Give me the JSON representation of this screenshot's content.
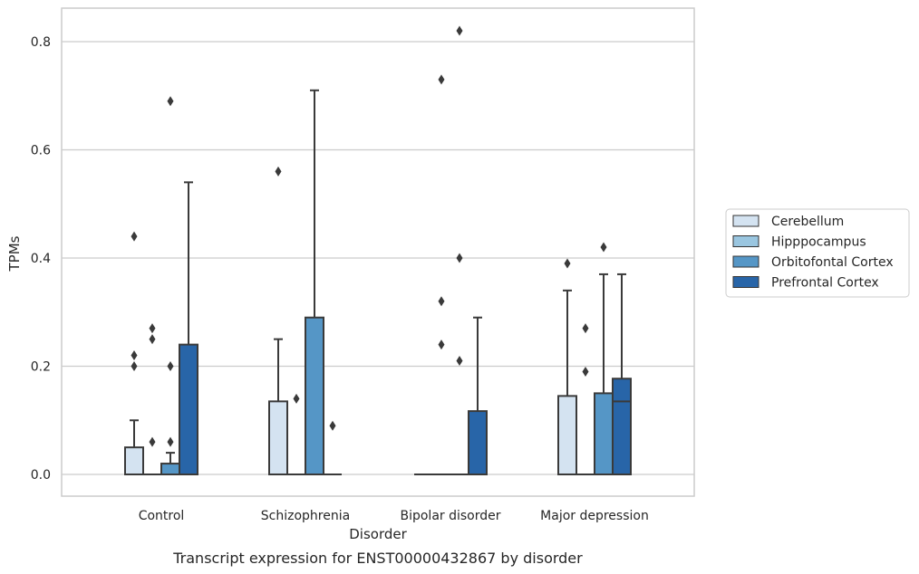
{
  "caption": "Transcript expression for ENST00000432867 by disorder",
  "chart_data": {
    "type": "box",
    "title": "",
    "xlabel": "Disorder",
    "ylabel": "TPMs",
    "ylim": [
      -0.04,
      0.86
    ],
    "yticks": [
      0.0,
      0.2,
      0.4,
      0.6,
      0.8
    ],
    "ytick_labels": [
      "0.0",
      "0.2",
      "0.4",
      "0.6",
      "0.8"
    ],
    "grid": "horizontal",
    "legend_position": "right",
    "categories": [
      "Control",
      "Schizophrenia",
      "Bipolar disorder",
      "Major depression"
    ],
    "series": [
      {
        "name": "Cerebellum",
        "color": "#d4e3f1",
        "boxes": [
          {
            "q1": 0.0,
            "median": 0.0,
            "q3": 0.05,
            "whisker_low": 0.0,
            "whisker_high": 0.1,
            "outliers": [
              0.2,
              0.22,
              0.44
            ]
          },
          {
            "q1": 0.0,
            "median": 0.0,
            "q3": 0.135,
            "whisker_low": 0.0,
            "whisker_high": 0.25,
            "outliers": [
              0.56
            ]
          },
          {
            "q1": 0.0,
            "median": 0.0,
            "q3": 0.0,
            "whisker_low": 0.0,
            "whisker_high": 0.0,
            "outliers": []
          },
          {
            "q1": 0.0,
            "median": 0.0,
            "q3": 0.145,
            "whisker_low": 0.0,
            "whisker_high": 0.34,
            "outliers": [
              0.39
            ]
          }
        ]
      },
      {
        "name": "Hipppocampus",
        "color": "#9ac6e0",
        "boxes": [
          {
            "q1": 0.0,
            "median": 0.0,
            "q3": 0.0,
            "whisker_low": 0.0,
            "whisker_high": 0.0,
            "outliers": [
              0.06,
              0.25,
              0.27
            ]
          },
          {
            "q1": 0.0,
            "median": 0.0,
            "q3": 0.0,
            "whisker_low": 0.0,
            "whisker_high": 0.0,
            "outliers": [
              0.14
            ]
          },
          {
            "q1": 0.0,
            "median": 0.0,
            "q3": 0.0,
            "whisker_low": 0.0,
            "whisker_high": 0.0,
            "outliers": [
              0.24,
              0.32,
              0.73
            ]
          },
          {
            "q1": 0.0,
            "median": 0.0,
            "q3": 0.0,
            "whisker_low": 0.0,
            "whisker_high": 0.0,
            "outliers": [
              0.19,
              0.27
            ]
          }
        ]
      },
      {
        "name": "Orbitofontal Cortex",
        "color": "#5596c6",
        "boxes": [
          {
            "q1": 0.0,
            "median": 0.0,
            "q3": 0.02,
            "whisker_low": 0.0,
            "whisker_high": 0.04,
            "outliers": [
              0.06,
              0.2,
              0.69
            ]
          },
          {
            "q1": 0.0,
            "median": 0.0,
            "q3": 0.29,
            "whisker_low": 0.0,
            "whisker_high": 0.71,
            "outliers": []
          },
          {
            "q1": 0.0,
            "median": 0.0,
            "q3": 0.0,
            "whisker_low": 0.0,
            "whisker_high": 0.0,
            "outliers": [
              0.21,
              0.4,
              0.82
            ]
          },
          {
            "q1": 0.0,
            "median": 0.0,
            "q3": 0.15,
            "whisker_low": 0.0,
            "whisker_high": 0.37,
            "outliers": [
              0.42
            ]
          }
        ]
      },
      {
        "name": "Prefrontal Cortex",
        "color": "#2865a8",
        "boxes": [
          {
            "q1": 0.0,
            "median": 0.0,
            "q3": 0.24,
            "whisker_low": 0.0,
            "whisker_high": 0.54,
            "outliers": []
          },
          {
            "q1": 0.0,
            "median": 0.0,
            "q3": 0.0,
            "whisker_low": 0.0,
            "whisker_high": 0.0,
            "outliers": [
              0.09
            ]
          },
          {
            "q1": 0.0,
            "median": 0.0,
            "q3": 0.117,
            "whisker_low": 0.0,
            "whisker_high": 0.29,
            "outliers": []
          },
          {
            "q1": 0.0,
            "median": 0.135,
            "q3": 0.177,
            "whisker_low": 0.0,
            "whisker_high": 0.37,
            "outliers": []
          }
        ]
      }
    ]
  }
}
